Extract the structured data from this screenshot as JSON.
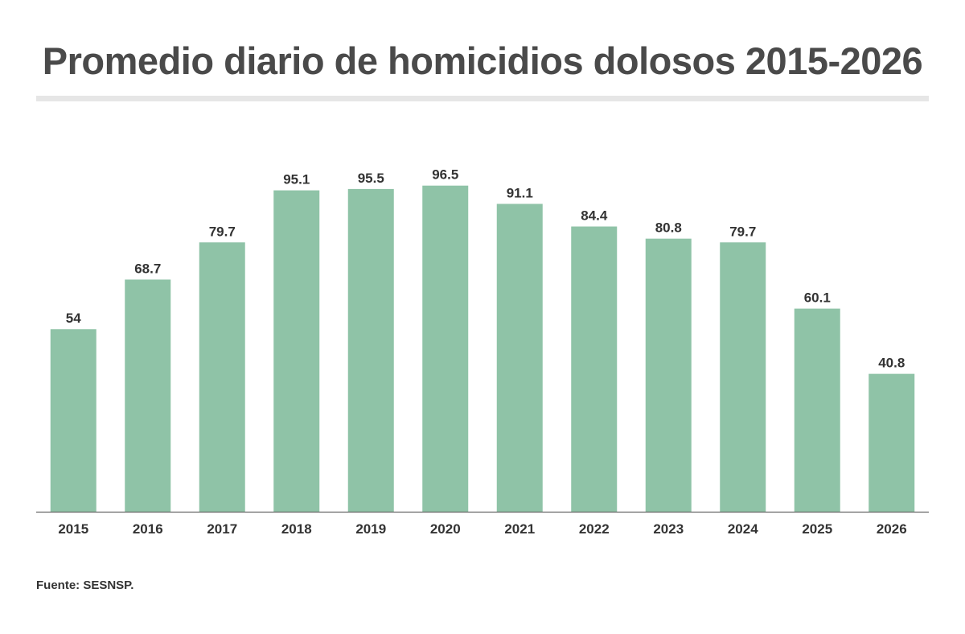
{
  "colors": {
    "bar": "#8fc3a7",
    "text": "#333333",
    "title": "#4a4a4a",
    "axis": "#666666"
  },
  "chart_data": {
    "type": "bar",
    "title": "Promedio diario de homicidios dolosos 2015-2026",
    "xlabel": "",
    "ylabel": "",
    "categories": [
      "2015",
      "2016",
      "2017",
      "2018",
      "2019",
      "2020",
      "2021",
      "2022",
      "2023",
      "2024",
      "2025",
      "2026"
    ],
    "values": [
      54,
      68.7,
      79.7,
      95.1,
      95.5,
      96.5,
      91.1,
      84.4,
      80.8,
      79.7,
      60.1,
      40.8
    ],
    "value_labels": [
      "54",
      "68.7",
      "79.7",
      "95.1",
      "95.5",
      "96.5",
      "91.1",
      "84.4",
      "80.8",
      "79.7",
      "60.1",
      "40.8"
    ],
    "ylim": [
      0,
      100
    ],
    "grid": false,
    "legend": "none"
  },
  "source": "Fuente: SESNSP."
}
